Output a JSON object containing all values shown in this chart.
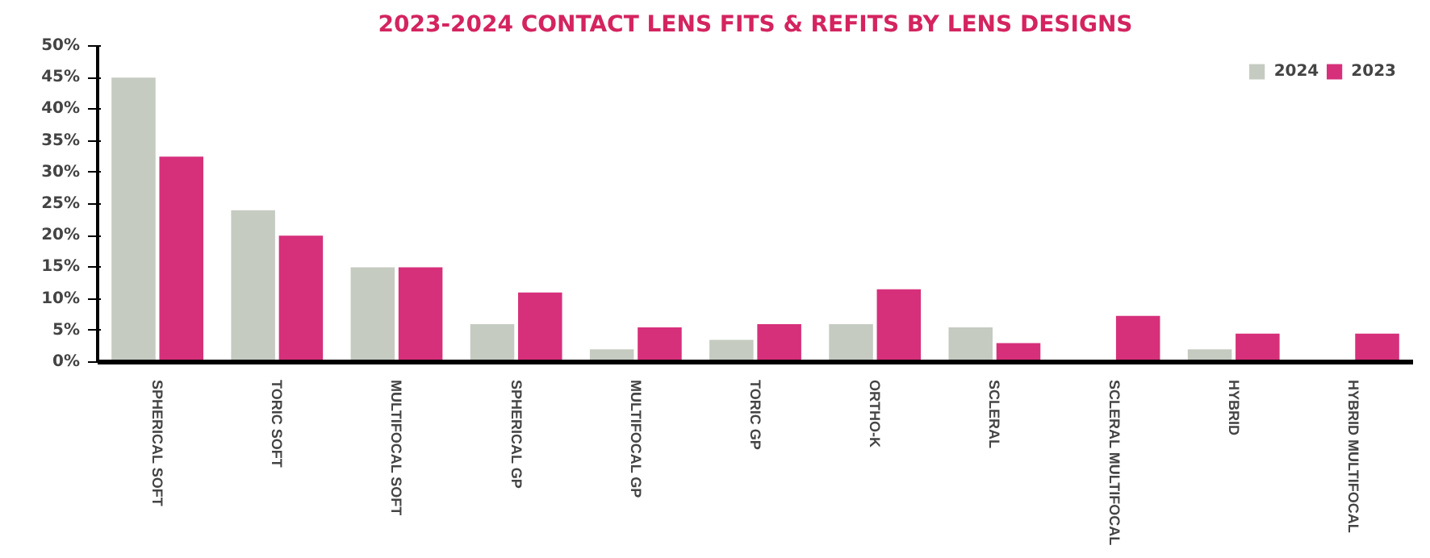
{
  "chart_data": {
    "type": "bar",
    "title": "2023-2024 CONTACT LENS FITS & REFITS BY LENS DESIGNS",
    "categories": [
      "SPHERICAL SOFT",
      "TORIC SOFT",
      "MULTIFOCAL SOFT",
      "SPHERICAL GP",
      "MULTIFOCAL GP",
      "TORIC GP",
      "ORTHO-K",
      "SCLERAL",
      "SCLERAL MULTIFOCAL",
      "HYBRID",
      "HYBRID MULTIFOCAL"
    ],
    "series": [
      {
        "name": "2024",
        "color": "#c5cbc1",
        "values": [
          45,
          24,
          15,
          6,
          2,
          3.5,
          6,
          5.5,
          0,
          2,
          0
        ]
      },
      {
        "name": "2023",
        "color": "#d6307a",
        "values": [
          32.5,
          20,
          15,
          11,
          5.5,
          6,
          11.5,
          3,
          7.3,
          4.5,
          4.5
        ]
      }
    ],
    "ylim": [
      0,
      50
    ],
    "yticks": [
      {
        "value": 0,
        "label": "0%"
      },
      {
        "value": 5,
        "label": "5%"
      },
      {
        "value": 10,
        "label": "10%"
      },
      {
        "value": 15,
        "label": "15%"
      },
      {
        "value": 20,
        "label": "20%"
      },
      {
        "value": 25,
        "label": "25%"
      },
      {
        "value": 30,
        "label": "30%"
      },
      {
        "value": 35,
        "label": "35%"
      },
      {
        "value": 40,
        "label": "40%"
      },
      {
        "value": 45,
        "label": "45%"
      },
      {
        "value": 50,
        "label": "50%"
      }
    ],
    "grid": false,
    "legend": "top right"
  }
}
